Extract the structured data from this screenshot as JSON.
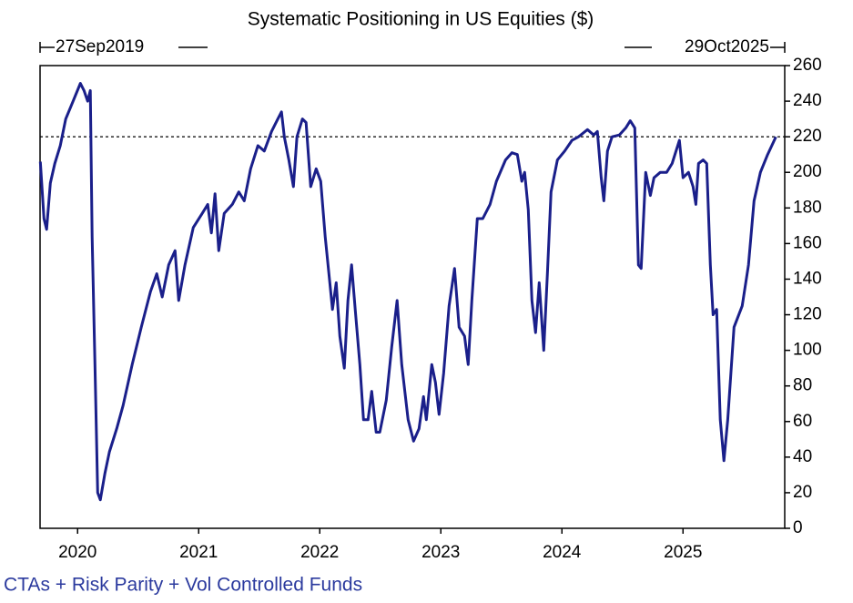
{
  "chart_data": {
    "type": "line",
    "title": "Systematic Positioning in US Equities ($)",
    "start_label": "27Sep2019",
    "end_label": "29Oct2025",
    "footnote": "CTAs + Risk Parity + Vol Controlled Funds",
    "hline": 220,
    "xlim": [
      2019.69,
      2025.84
    ],
    "xticks": [
      2020,
      2021,
      2022,
      2023,
      2024,
      2025
    ],
    "ylim": [
      0,
      260
    ],
    "yticks": [
      0,
      20,
      40,
      60,
      80,
      100,
      120,
      140,
      160,
      180,
      200,
      220,
      240,
      260
    ],
    "series": [
      {
        "name": "CTAs + Risk Parity + Vol Controlled Funds",
        "color": "#1a1f8a",
        "x": [
          2019.692,
          2019.722,
          2019.744,
          2019.775,
          2019.812,
          2019.857,
          2019.902,
          2019.963,
          2020.023,
          2020.053,
          2020.083,
          2020.105,
          2020.12,
          2020.143,
          2020.166,
          2020.188,
          2020.226,
          2020.263,
          2020.323,
          2020.376,
          2020.451,
          2020.526,
          2020.602,
          2020.654,
          2020.699,
          2020.752,
          2020.805,
          2020.835,
          2020.887,
          2020.955,
          2021.03,
          2021.075,
          2021.105,
          2021.135,
          2021.166,
          2021.211,
          2021.278,
          2021.331,
          2021.376,
          2021.429,
          2021.489,
          2021.542,
          2021.602,
          2021.654,
          2021.684,
          2021.707,
          2021.745,
          2021.782,
          2021.812,
          2021.857,
          2021.887,
          2021.925,
          2021.97,
          2022.008,
          2022.045,
          2022.083,
          2022.105,
          2022.136,
          2022.166,
          2022.203,
          2022.233,
          2022.263,
          2022.293,
          2022.331,
          2022.361,
          2022.399,
          2022.429,
          2022.466,
          2022.496,
          2022.549,
          2022.594,
          2022.639,
          2022.677,
          2022.73,
          2022.775,
          2022.82,
          2022.857,
          2022.88,
          2022.925,
          2022.955,
          2022.985,
          2023.023,
          2023.068,
          2023.113,
          2023.151,
          2023.196,
          2023.226,
          2023.256,
          2023.301,
          2023.346,
          2023.406,
          2023.459,
          2023.534,
          2023.587,
          2023.632,
          2023.669,
          2023.692,
          2023.722,
          2023.752,
          2023.782,
          2023.812,
          2023.85,
          2023.88,
          2023.91,
          2023.963,
          2024.023,
          2024.083,
          2024.136,
          2024.211,
          2024.263,
          2024.293,
          2024.324,
          2024.346,
          2024.376,
          2024.414,
          2024.474,
          2024.527,
          2024.564,
          2024.602,
          2024.632,
          2024.654,
          2024.692,
          2024.73,
          2024.76,
          2024.812,
          2024.865,
          2024.91,
          2024.97,
          2025.0,
          2025.045,
          2025.083,
          2025.106,
          2025.128,
          2025.166,
          2025.196,
          2025.226,
          2025.248,
          2025.278,
          2025.308,
          2025.338,
          2025.369,
          2025.421,
          2025.489,
          2025.541,
          2025.587,
          2025.639,
          2025.699,
          2025.767
        ],
        "values": [
          206,
          174,
          168,
          194,
          205,
          215,
          230,
          240,
          250,
          246,
          240,
          246,
          164,
          92,
          20,
          16,
          31,
          43,
          56,
          69,
          92,
          113,
          133,
          143,
          130,
          148,
          156,
          128,
          148,
          169,
          177,
          182,
          166,
          188,
          156,
          177,
          182,
          189,
          184,
          202,
          215,
          212,
          223,
          230,
          234,
          220,
          207,
          192,
          220,
          230,
          228,
          192,
          202,
          195,
          164,
          138,
          123,
          138,
          108,
          90,
          128,
          148,
          123,
          92,
          61,
          61,
          77,
          54,
          54,
          72,
          102,
          128,
          92,
          61,
          49,
          56,
          74,
          61,
          92,
          82,
          64,
          87,
          125,
          146,
          113,
          108,
          92,
          128,
          174,
          174,
          182,
          195,
          207,
          211,
          210,
          195,
          200,
          179,
          128,
          110,
          138,
          100,
          143,
          189,
          207,
          212,
          218,
          220,
          224,
          221,
          223,
          197,
          184,
          212,
          220,
          221,
          225,
          229,
          225,
          148,
          146,
          200,
          187,
          197,
          200,
          200,
          205,
          218,
          197,
          200,
          192,
          182,
          205,
          207,
          205,
          148,
          120,
          123,
          61,
          38,
          61,
          113,
          125,
          148,
          184,
          200,
          210,
          220
        ]
      }
    ]
  }
}
